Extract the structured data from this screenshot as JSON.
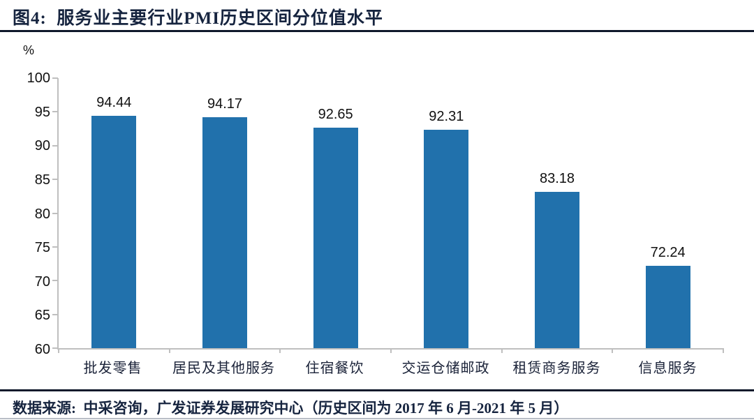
{
  "title": "图4:  服务业主要行业PMI历史区间分位值水平",
  "footer": {
    "source": "数据来源:  中采咨询，广发证券发展研究中心（历史区间为 2017 年 6 月-2021 年 5 月）"
  },
  "colors": {
    "bar": "#2171AC",
    "navy_text": "#16243F",
    "axis": "#BFBFBF",
    "rule_dark": "#10192B"
  },
  "chart_data": {
    "type": "bar",
    "title": "服务业主要行业PMI历史区间分位值水平",
    "categories": [
      "批发零售",
      "居民及其他服务",
      "住宿餐饮",
      "交运仓储邮政",
      "租赁商务服务",
      "信息服务"
    ],
    "values": [
      94.44,
      94.17,
      92.65,
      92.31,
      83.18,
      72.24
    ],
    "value_labels": [
      "94.44",
      "94.17",
      "92.65",
      "92.31",
      "83.18",
      "72.24"
    ],
    "xlabel": "",
    "ylabel": "%",
    "ylim": [
      60,
      100
    ],
    "ytick_step": 5,
    "yticks": [
      100,
      95,
      90,
      85,
      80,
      75,
      70,
      65,
      60
    ],
    "grid": false,
    "legend_position": "none",
    "bar_color": "#2171AC"
  }
}
